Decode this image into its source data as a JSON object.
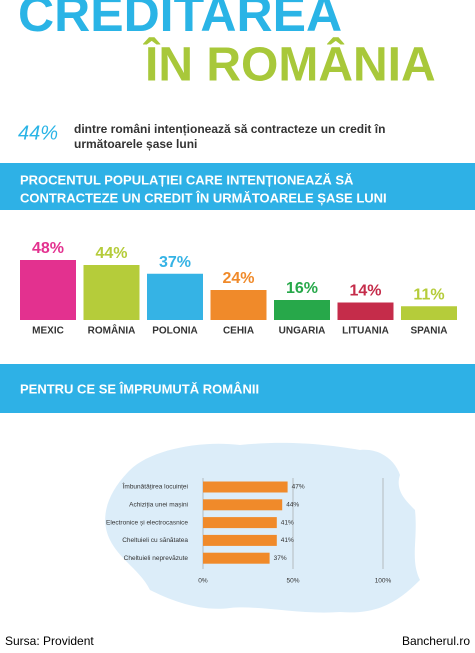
{
  "header": {
    "title_line1": "CREDITAREA",
    "title_line2": "ÎN ROMÂNIA",
    "highlight": "44%",
    "subtitle_lines": [
      "dintre români intenționează să contracteze un credit în",
      "următoarele șase luni"
    ]
  },
  "chart_data": [
    {
      "type": "bar",
      "orientation": "vertical",
      "title": [
        "PROCENTUL POPULAȚIEI CARE INTENȚIONEAZĂ SĂ",
        "CONTRACTEZE UN CREDIT ÎN URMĂTOARELE ȘASE LUNI"
      ],
      "categories": [
        "MEXIC",
        "ROMÂNIA",
        "POLONIA",
        "CEHIA",
        "UNGARIA",
        "LITUANIA",
        "SPANIA"
      ],
      "values": [
        48,
        44,
        37,
        24,
        16,
        14,
        11
      ],
      "value_labels": [
        "48%",
        "44%",
        "37%",
        "24%",
        "16%",
        "14%",
        "11%"
      ],
      "colors": [
        "#e3318f",
        "#b5cc3a",
        "#35b3e5",
        "#f08a2a",
        "#27a84a",
        "#c52c4a",
        "#b5cc3a"
      ]
    },
    {
      "type": "bar",
      "orientation": "horizontal",
      "title": [
        "PENTRU CE SE ÎMPRUMUTĂ ROMÂNII"
      ],
      "categories": [
        "Îmbunătățirea locuinței",
        "Achiziția unei mașini",
        "Electronice și electrocasnice",
        "Cheltuieli cu sănătatea",
        "Cheltuieli neprevăzute"
      ],
      "values": [
        47,
        44,
        41,
        41,
        37
      ],
      "value_labels": [
        "47%",
        "44%",
        "41%",
        "41%",
        "37%"
      ],
      "color": "#f08a2a",
      "xlim": [
        0,
        100
      ],
      "xticks": [
        {
          "value": 0,
          "label": "0%"
        },
        {
          "value": 50,
          "label": "50%"
        },
        {
          "value": 100,
          "label": "100%"
        }
      ],
      "grid": true
    }
  ],
  "footer": {
    "source": "Sursa: Provident",
    "site": "Bancherul.ro"
  }
}
